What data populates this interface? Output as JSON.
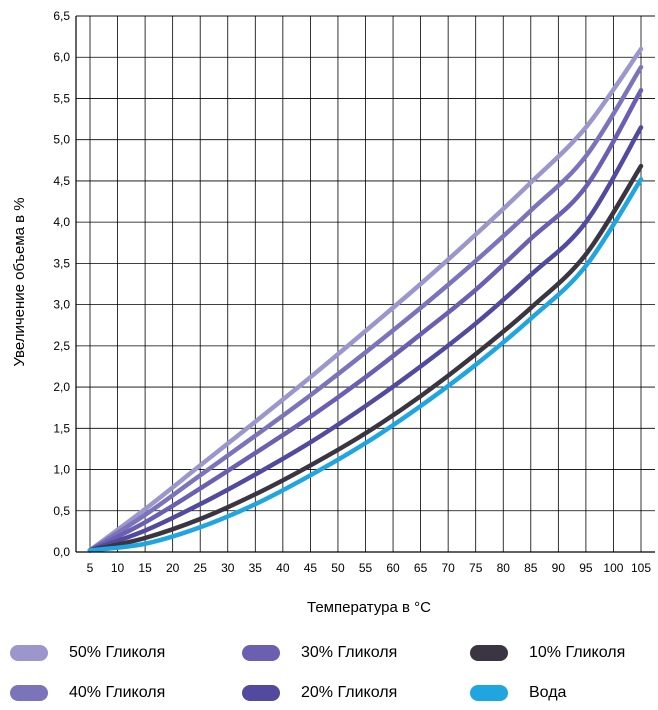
{
  "chart_data": {
    "type": "line",
    "xlabel": "Температура в °C",
    "ylabel": "Увеличение объема в %",
    "xlim": [
      5,
      105
    ],
    "ylim": [
      0,
      6.5
    ],
    "x_ticks": [
      "5",
      "10",
      "15",
      "20",
      "25",
      "30",
      "35",
      "40",
      "45",
      "50",
      "55",
      "60",
      "65",
      "70",
      "75",
      "80",
      "85",
      "90",
      "95",
      "100",
      "105"
    ],
    "y_ticks": [
      "0,0",
      "0,5",
      "1,0",
      "1,5",
      "2,0",
      "2,5",
      "3,0",
      "3,5",
      "4,0",
      "4,5",
      "5,0",
      "5,5",
      "6,0",
      "6,5"
    ],
    "grid": true,
    "x": [
      5,
      15,
      25,
      35,
      45,
      55,
      65,
      75,
      85,
      95,
      105
    ],
    "series": [
      {
        "name": "50% Гликоля",
        "color": "#9b96cc",
        "values": [
          0.02,
          0.52,
          1.05,
          1.58,
          2.12,
          2.68,
          3.25,
          3.85,
          4.48,
          5.15,
          6.1
        ]
      },
      {
        "name": "40% Гликоля",
        "color": "#7b74ba",
        "values": [
          0.02,
          0.45,
          0.93,
          1.41,
          1.9,
          2.42,
          2.96,
          3.53,
          4.14,
          4.8,
          5.88
        ]
      },
      {
        "name": "30% Гликоля",
        "color": "#6a5fb0",
        "values": [
          0.02,
          0.36,
          0.77,
          1.2,
          1.64,
          2.12,
          2.64,
          3.18,
          3.8,
          4.43,
          5.6
        ]
      },
      {
        "name": "20% Гликоля",
        "color": "#524a9e",
        "values": [
          0.02,
          0.26,
          0.58,
          0.94,
          1.33,
          1.77,
          2.25,
          2.77,
          3.36,
          4.0,
          5.15
        ]
      },
      {
        "name": "10% Гликоля",
        "color": "#3a3540",
        "values": [
          0.02,
          0.17,
          0.4,
          0.7,
          1.05,
          1.44,
          1.89,
          2.4,
          2.96,
          3.61,
          4.68
        ]
      },
      {
        "name": "Вода",
        "color": "#1fa6e0",
        "values": [
          0.02,
          0.1,
          0.3,
          0.58,
          0.93,
          1.32,
          1.77,
          2.27,
          2.83,
          3.47,
          4.52
        ]
      }
    ]
  },
  "legend": {
    "items": [
      {
        "label": "50% Гликоля",
        "color": "#9b96cc"
      },
      {
        "label": "30% Гликоля",
        "color": "#6a5fb0"
      },
      {
        "label": "10% Гликоля",
        "color": "#3a3540"
      },
      {
        "label": "40% Гликоля",
        "color": "#7b74ba"
      },
      {
        "label": "20% Гликоля",
        "color": "#524a9e"
      },
      {
        "label": "Вода",
        "color": "#1fa6e0"
      }
    ]
  }
}
